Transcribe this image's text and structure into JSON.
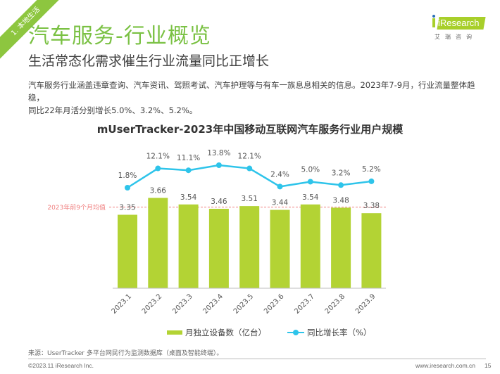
{
  "section_ribbon": "1. 本地生活",
  "header": {
    "title": "汽车服务-行业概览",
    "subtitle": "生活常态化需求催生行业流量同比正增长"
  },
  "logo": {
    "text": "iResearch",
    "cn": "艾瑞咨询"
  },
  "description": {
    "line1": "汽车服务行业涵盖违章查询、汽车资讯、驾照考试、汽车护理等与有车一族息息相关的信息。2023年7-9月，行业流量整体趋稳，",
    "line2": "同比22年月活分别增长5.0%、3.2%、5.2%。"
  },
  "chart_data": {
    "type": "bar",
    "title": "mUserTracker-2023年中国移动互联网汽车服务行业用户规模",
    "categories": [
      "2023.1",
      "2023.2",
      "2023.3",
      "2023.4",
      "2023.5",
      "2023.6",
      "2023.7",
      "2023.8",
      "2023.9"
    ],
    "series": [
      {
        "name": "月独立设备数（亿台）",
        "type": "bar",
        "color": "#b3d334",
        "values": [
          3.35,
          3.66,
          3.54,
          3.46,
          3.51,
          3.44,
          3.54,
          3.48,
          3.38
        ],
        "labels": [
          "3.35",
          "3.66",
          "3.54",
          "3.46",
          "3.51",
          "3.44",
          "3.54",
          "3.48",
          "3.38"
        ]
      },
      {
        "name": "同比增长率（%）",
        "type": "line",
        "color": "#2ec4ea",
        "values": [
          1.8,
          12.1,
          11.1,
          13.8,
          12.1,
          2.4,
          5.0,
          3.2,
          5.2
        ],
        "labels": [
          "1.8%",
          "12.1%",
          "11.1%",
          "13.8%",
          "12.1%",
          "2.4%",
          "5.0%",
          "3.2%",
          "5.2%"
        ]
      }
    ],
    "reference_line": {
      "label": "2023年前9个月均值",
      "value": 3.49,
      "color": "#f08080"
    },
    "ylim_bar": [
      2.0,
      4.0
    ],
    "ylim_line": [
      -20,
      20
    ],
    "grid": false,
    "legend": "bottom"
  },
  "footer": {
    "source": "来源：UserTracker 多平台网民行为监测数据库（桌面及智能终端）。",
    "copyright": "©2023.11 iResearch Inc.",
    "website": "www.iresearch.com.cn",
    "page": "15"
  }
}
